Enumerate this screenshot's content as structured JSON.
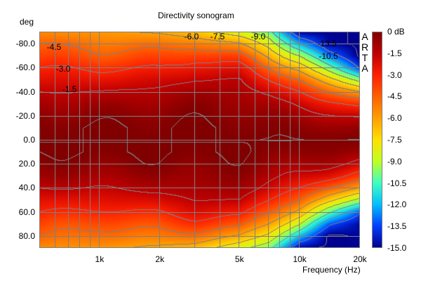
{
  "chart_data": {
    "type": "heatmap",
    "title": "Directivity sonogram",
    "xlabel": "Frequency (Hz)",
    "ylabel": "deg",
    "x_scale": "log",
    "xlim": [
      500,
      20000
    ],
    "ylim": [
      -90,
      90
    ],
    "x_ticks": [
      {
        "value": 1000,
        "label": "1k"
      },
      {
        "value": 2000,
        "label": "2k"
      },
      {
        "value": 5000,
        "label": "5k"
      },
      {
        "value": 10000,
        "label": "10k"
      },
      {
        "value": 20000,
        "label": "20k"
      }
    ],
    "y_ticks": [
      {
        "value": -80,
        "label": "-80.0"
      },
      {
        "value": -60,
        "label": "-60.0"
      },
      {
        "value": -40,
        "label": "-40.0"
      },
      {
        "value": -20,
        "label": "-20.0"
      },
      {
        "value": 0,
        "label": "0.0"
      },
      {
        "value": 20,
        "label": "20.0"
      },
      {
        "value": 40,
        "label": "40.0"
      },
      {
        "value": 60,
        "label": "60.0"
      },
      {
        "value": 80,
        "label": "80.0"
      }
    ],
    "grid": true,
    "colorbar": {
      "range": [
        -15,
        0
      ],
      "labels": [
        "0 dB",
        "-1.5",
        "-3.0",
        "-4.5",
        "-6.0",
        "-7.5",
        "-9.0",
        "-10.5",
        "-12.0",
        "-13.5",
        "-15.0"
      ],
      "colors": [
        "#800000",
        "#c00000",
        "#ff2000",
        "#ff6000",
        "#ffa000",
        "#ffe000",
        "#c0ff20",
        "#40ffc0",
        "#00c0ff",
        "#0040ff",
        "#000090"
      ]
    },
    "contour_step_db": 1.5,
    "contour_labels": [
      "-4.5",
      "-3.0",
      "-1.5",
      "-6.0",
      "-7.5",
      "-9.0",
      "-13.5",
      "-10.5"
    ],
    "frequencies": [
      500,
      1000,
      2000,
      3000,
      5000,
      7000,
      10000,
      14000,
      20000
    ],
    "angles": [
      -90,
      -80,
      -70,
      -60,
      -50,
      -40,
      -30,
      -20,
      -10,
      0,
      10,
      20,
      30,
      40,
      50,
      60,
      70,
      80,
      90
    ],
    "values_db": [
      [
        -5.5,
        -4.5,
        -3.8,
        -3.0,
        -2.3,
        -1.5,
        -0.8,
        -0.3,
        0,
        0,
        0,
        -0.3,
        -0.8,
        -1.5,
        -2.3,
        -3.0,
        -3.8,
        -4.5,
        -5.5
      ],
      [
        -5.8,
        -5.0,
        -4.2,
        -3.2,
        -2.3,
        -1.5,
        -0.8,
        -0.3,
        0,
        0,
        0,
        -0.3,
        -0.8,
        -1.5,
        -2.3,
        -3.2,
        -4.2,
        -5.0,
        -5.8
      ],
      [
        -6.2,
        -5.0,
        -4.0,
        -3.0,
        -2.0,
        -1.2,
        -0.6,
        -0.2,
        0,
        0,
        0,
        -0.2,
        -0.6,
        -1.2,
        -2.0,
        -3.0,
        -4.0,
        -5.0,
        -6.2
      ],
      [
        -6.8,
        -5.0,
        -3.5,
        -2.3,
        -1.5,
        -0.8,
        -0.4,
        -0.2,
        0,
        0,
        0,
        -0.2,
        -0.4,
        -0.8,
        -1.5,
        -2.3,
        -3.5,
        -5.0,
        -6.8
      ],
      [
        -8.5,
        -6.0,
        -4.0,
        -2.5,
        -1.5,
        -0.9,
        -0.5,
        -0.2,
        0,
        0,
        0,
        -0.2,
        -0.5,
        -0.9,
        -1.5,
        -2.5,
        -4.0,
        -6.0,
        -8.5
      ],
      [
        -10.0,
        -8.0,
        -6.2,
        -4.5,
        -3.0,
        -1.8,
        -1.0,
        -0.5,
        -0.2,
        0,
        -0.2,
        -0.5,
        -1.0,
        -1.8,
        -3.0,
        -4.5,
        -6.2,
        -8.0,
        -10.0
      ],
      [
        -15.0,
        -12.0,
        -9.0,
        -6.5,
        -4.5,
        -3.0,
        -1.8,
        -0.9,
        -0.3,
        0,
        -0.3,
        -0.9,
        -1.8,
        -3.0,
        -4.5,
        -6.5,
        -9.0,
        -12.0,
        -15.0
      ],
      [
        -15.0,
        -15.0,
        -13.0,
        -10.0,
        -7.0,
        -4.5,
        -2.5,
        -1.2,
        -0.4,
        0,
        -0.4,
        -1.2,
        -2.5,
        -4.5,
        -7.0,
        -10.0,
        -13.0,
        -15.0,
        -15.0
      ],
      [
        -15.0,
        -15.0,
        -15.0,
        -13.5,
        -9.5,
        -6.0,
        -3.5,
        -1.8,
        -0.6,
        0,
        -0.6,
        -1.8,
        -3.5,
        -6.0,
        -9.5,
        -13.5,
        -15.0,
        -15.0,
        -15.0
      ]
    ],
    "watermark": "ARTA"
  }
}
